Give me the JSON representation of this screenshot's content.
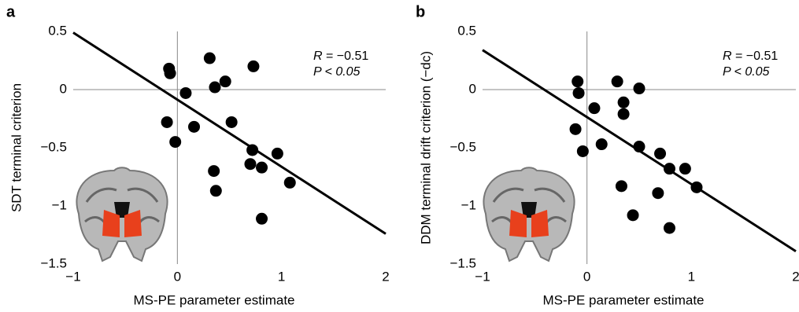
{
  "chart_data": [
    {
      "type": "scatter",
      "panel": "a",
      "y_label": "SDT terminal criterion",
      "x_label": "MS-PE parameter estimate",
      "annotation": {
        "symbol": "R",
        "stat": " = −0.51",
        "p": "P < 0.05"
      },
      "color": "#000000",
      "x": [
        -0.08,
        -0.07,
        0.31,
        0.73,
        0.46,
        0.36,
        0.08,
        -0.1,
        0.52,
        0.16,
        -0.02,
        0.72,
        0.96,
        0.7,
        0.81,
        0.35,
        0.37,
        1.08,
        0.81
      ],
      "values": [
        0.18,
        0.14,
        0.27,
        0.2,
        0.07,
        0.02,
        -0.03,
        -0.28,
        -0.28,
        -0.32,
        -0.45,
        -0.52,
        -0.55,
        -0.64,
        -0.67,
        -0.7,
        -0.87,
        -0.8,
        -1.11
      ],
      "trend_line": {
        "x": [
          -1,
          2
        ],
        "y": [
          0.49,
          -1.24
        ]
      },
      "xlim": [
        -1,
        2
      ],
      "ylim": [
        -1.5,
        0.5
      ],
      "xticks": [
        {
          "value": -1,
          "label": "−1"
        },
        0,
        1,
        2
      ],
      "yticks": [
        {
          "value": -1.5,
          "label": "−1.5"
        },
        {
          "value": -1,
          "label": "−1"
        },
        {
          "value": -0.5,
          "label": "−0.5"
        },
        0,
        0.5
      ]
    },
    {
      "type": "scatter",
      "panel": "b",
      "y_label": "DDM terminal drift criterion (−dc)",
      "x_label": "MS-PE parameter estimate",
      "annotation": {
        "symbol": "R",
        "stat": " = −0.51",
        "p": "P < 0.05"
      },
      "color": "#000000",
      "x": [
        -0.09,
        -0.08,
        0.29,
        0.5,
        0.07,
        0.35,
        0.35,
        -0.11,
        -0.04,
        0.14,
        0.5,
        0.7,
        0.79,
        0.94,
        1.05,
        0.33,
        0.68,
        0.44,
        0.79
      ],
      "values": [
        0.07,
        -0.03,
        0.07,
        0.01,
        -0.16,
        -0.11,
        -0.21,
        -0.34,
        -0.53,
        -0.47,
        -0.49,
        -0.55,
        -0.68,
        -0.68,
        -0.84,
        -0.83,
        -0.89,
        -1.08,
        -1.19
      ],
      "trend_line": {
        "x": [
          -1,
          2
        ],
        "y": [
          0.34,
          -1.39
        ]
      },
      "xlim": [
        -1,
        2
      ],
      "ylim": [
        -1.5,
        0.5
      ],
      "xticks": [
        {
          "value": -1,
          "label": "−1"
        },
        0,
        1,
        2
      ],
      "yticks": [
        {
          "value": -1.5,
          "label": "−1.5"
        },
        {
          "value": -1,
          "label": "−1"
        },
        {
          "value": -0.5,
          "label": "−0.5"
        },
        0,
        0.5
      ]
    }
  ]
}
